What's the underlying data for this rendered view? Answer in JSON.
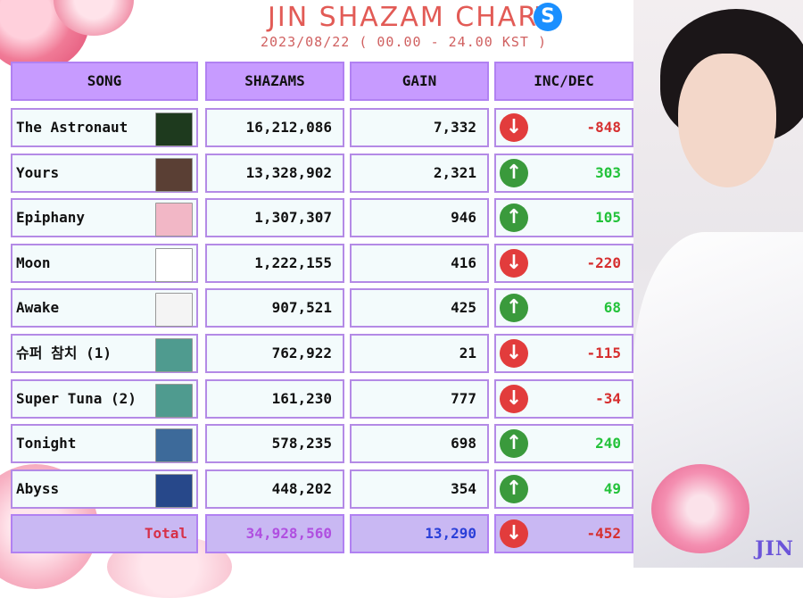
{
  "header": {
    "title": "JIN SHAZAM CHART",
    "subtitle": "2023/08/22 ( 00.00 - 24.00 KST )",
    "icon": "shazam-logo-icon",
    "accent": "#e25b56"
  },
  "columns": [
    "SONG",
    "SHAZAMS",
    "GAIN",
    "INC/DEC"
  ],
  "rows": [
    {
      "song": "The Astronaut",
      "shazams": "16,212,086",
      "gain": "7,332",
      "change": "-848",
      "trend": "down",
      "cover": "#1e3a1e"
    },
    {
      "song": "Yours",
      "shazams": "13,328,902",
      "gain": "2,321",
      "change": "303",
      "trend": "up",
      "cover": "#5a3f34"
    },
    {
      "song": "Epiphany",
      "shazams": "1,307,307",
      "gain": "946",
      "change": "105",
      "trend": "up",
      "cover": "#f2b7c6"
    },
    {
      "song": "Moon",
      "shazams": "1,222,155",
      "gain": "416",
      "change": "-220",
      "trend": "down",
      "cover": "#ffffff"
    },
    {
      "song": "Awake",
      "shazams": "907,521",
      "gain": "425",
      "change": "68",
      "trend": "up",
      "cover": "#f4f4f4"
    },
    {
      "song": "슈퍼 참치 (1)",
      "shazams": "762,922",
      "gain": "21",
      "change": "-115",
      "trend": "down",
      "cover": "#4f9b8f"
    },
    {
      "song": "Super Tuna (2)",
      "shazams": "161,230",
      "gain": "777",
      "change": "-34",
      "trend": "down",
      "cover": "#4f9b8f"
    },
    {
      "song": "Tonight",
      "shazams": "578,235",
      "gain": "698",
      "change": "240",
      "trend": "up",
      "cover": "#3d6a9a"
    },
    {
      "song": "Abyss",
      "shazams": "448,202",
      "gain": "354",
      "change": "49",
      "trend": "up",
      "cover": "#27488a"
    }
  ],
  "total": {
    "label": "Total",
    "shazams": "34,928,560",
    "gain": "13,290",
    "change": "-452",
    "trend": "down"
  },
  "colors": {
    "up": "#3a9a3c",
    "down": "#e23c3c",
    "positive_text": "#23c23a",
    "negative_text": "#d62f2f",
    "header_cell": "#c79bff",
    "border": "#b48ae6"
  },
  "watermark": "JIN"
}
